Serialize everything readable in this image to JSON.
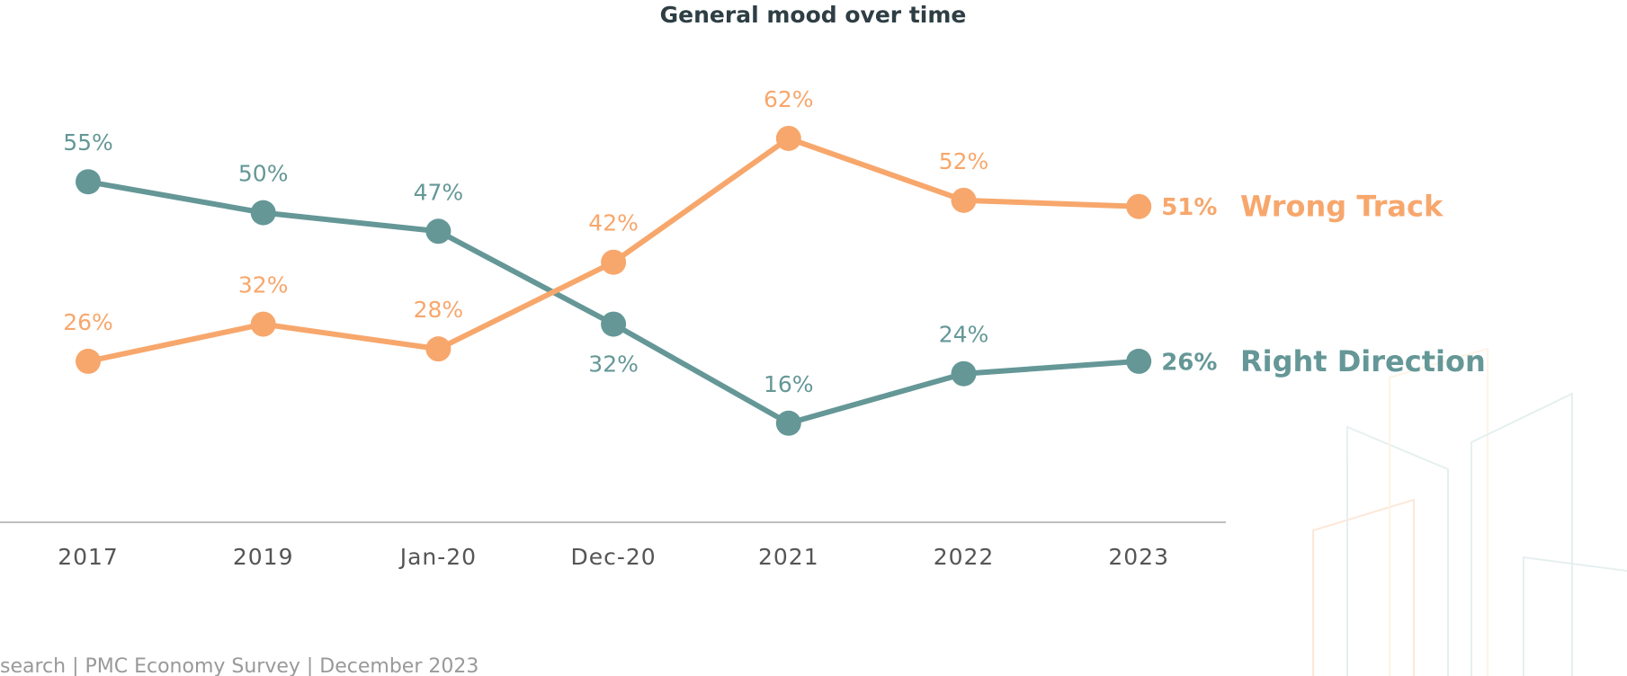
{
  "chart_data": {
    "type": "line",
    "title": "General mood over time",
    "categories": [
      "2017",
      "2019",
      "Jan-20",
      "Dec-20",
      "2021",
      "2022",
      "2023"
    ],
    "series": [
      {
        "name": "Right Direction",
        "color": "#659797",
        "values": [
          55,
          50,
          47,
          32,
          16,
          24,
          26
        ],
        "value_labels": [
          "55%",
          "50%",
          "47%",
          "32%",
          "16%",
          "24%",
          "26%"
        ]
      },
      {
        "name": "Wrong Track",
        "color": "#f7a76c",
        "values": [
          26,
          32,
          28,
          42,
          62,
          52,
          51
        ],
        "value_labels": [
          "26%",
          "32%",
          "28%",
          "42%",
          "62%",
          "52%",
          "51%"
        ]
      }
    ],
    "ylim": [
      0,
      80
    ],
    "source": "search | PMC Economy Survey | December 2023"
  }
}
